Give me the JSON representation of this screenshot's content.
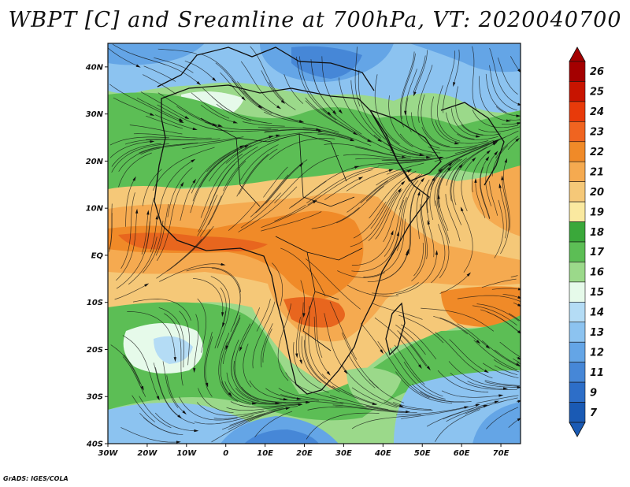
{
  "title": "WBPT [C] and Sreamline at 700hPa, VT: 2020040700",
  "credit": "GrADS: IGES/COLA",
  "map": {
    "lon_range": [
      -30,
      75
    ],
    "lat_range": [
      -40,
      45
    ],
    "lon_ticks": [
      "30W",
      "20W",
      "10W",
      "0",
      "10E",
      "20E",
      "30E",
      "40E",
      "50E",
      "60E",
      "70E"
    ],
    "lat_ticks": [
      "40N",
      "30N",
      "20N",
      "10N",
      "EQ",
      "10S",
      "20S",
      "30S",
      "40S"
    ]
  },
  "colorbar": {
    "labels": [
      "26",
      "25",
      "24",
      "23",
      "22",
      "21",
      "20",
      "19",
      "18",
      "17",
      "16",
      "15",
      "14",
      "13",
      "12",
      "11",
      "9",
      "7"
    ],
    "colors": [
      "#a40000",
      "#c81400",
      "#e83a0a",
      "#f06420",
      "#f08a28",
      "#f5aa50",
      "#f5c878",
      "#fae9a0",
      "#3aa83a",
      "#5cbe55",
      "#9bd98a",
      "#e6faea",
      "#b4dcf5",
      "#8cc3f0",
      "#64a5e6",
      "#4687d7",
      "#2d6ec8",
      "#1a5ab4"
    ]
  },
  "colors": {
    "coast": "#111111",
    "streamline": "#111111"
  }
}
